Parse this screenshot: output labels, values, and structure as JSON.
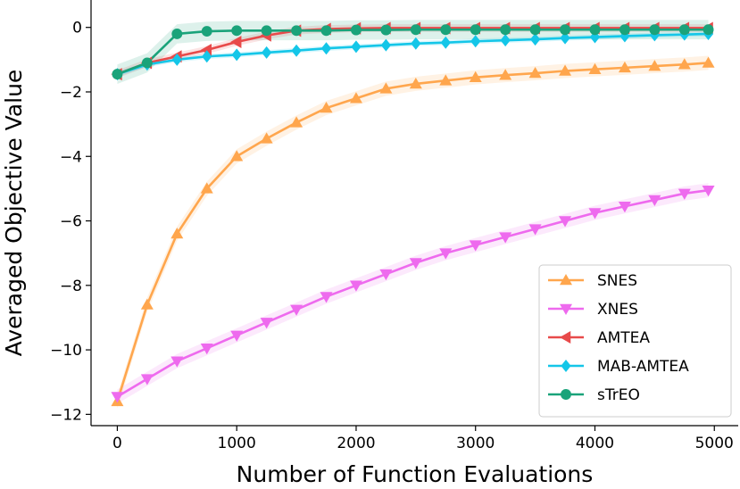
{
  "chart_data": {
    "type": "line",
    "xlabel": "Number of Function Evaluations",
    "ylabel": "Averaged Objective Value",
    "xlim": [
      -220,
      5200
    ],
    "ylim": [
      -12.35,
      0.85
    ],
    "xticks": [
      0,
      1000,
      2000,
      3000,
      4000,
      5000
    ],
    "yticks": [
      0,
      -2,
      -4,
      -6,
      -8,
      -10,
      -12
    ],
    "xtick_labels": [
      "0",
      "1000",
      "2000",
      "3000",
      "4000",
      "5000"
    ],
    "ytick_labels": [
      "0",
      "−2",
      "−4",
      "−6",
      "−8",
      "−10",
      "−12"
    ],
    "grid": false,
    "legend_position": "lower-right",
    "x": [
      0,
      250,
      500,
      750,
      1000,
      1250,
      1500,
      1750,
      2000,
      2250,
      2500,
      2750,
      3000,
      3250,
      3500,
      3750,
      4000,
      4250,
      4500,
      4750,
      4950
    ],
    "series": [
      {
        "name": "SNES",
        "color": "#ffa64d",
        "marker": "triangle-up",
        "values": [
          -11.6,
          -8.6,
          -6.4,
          -5.0,
          -4.0,
          -3.45,
          -2.95,
          -2.5,
          -2.2,
          -1.9,
          -1.75,
          -1.65,
          -1.55,
          -1.48,
          -1.42,
          -1.35,
          -1.3,
          -1.25,
          -1.2,
          -1.15,
          -1.1
        ],
        "band": 0.22
      },
      {
        "name": "XNES",
        "color": "#ee6aee",
        "marker": "triangle-down",
        "values": [
          -11.45,
          -10.9,
          -10.35,
          -9.95,
          -9.55,
          -9.15,
          -8.75,
          -8.35,
          -8.0,
          -7.65,
          -7.3,
          -7.0,
          -6.75,
          -6.5,
          -6.25,
          -6.0,
          -5.75,
          -5.55,
          -5.35,
          -5.15,
          -5.05
        ],
        "band": 0.22
      },
      {
        "name": "AMTEA",
        "color": "#e84a4a",
        "marker": "triangle-left",
        "values": [
          -1.45,
          -1.1,
          -0.9,
          -0.7,
          -0.45,
          -0.25,
          -0.1,
          -0.05,
          -0.03,
          -0.02,
          -0.02,
          -0.02,
          -0.02,
          -0.02,
          -0.02,
          -0.02,
          -0.02,
          -0.02,
          -0.02,
          -0.02,
          -0.02
        ],
        "band": 0.12
      },
      {
        "name": "MAB-AMTEA",
        "color": "#14c6e8",
        "marker": "diamond",
        "values": [
          -1.45,
          -1.15,
          -1.0,
          -0.9,
          -0.85,
          -0.78,
          -0.72,
          -0.65,
          -0.6,
          -0.55,
          -0.5,
          -0.47,
          -0.43,
          -0.4,
          -0.37,
          -0.33,
          -0.3,
          -0.27,
          -0.24,
          -0.22,
          -0.2
        ],
        "band": 0.08
      },
      {
        "name": "sTrEO",
        "color": "#1aa37a",
        "marker": "circle",
        "values": [
          -1.45,
          -1.1,
          -0.2,
          -0.12,
          -0.1,
          -0.1,
          -0.1,
          -0.1,
          -0.08,
          -0.08,
          -0.07,
          -0.07,
          -0.07,
          -0.07,
          -0.07,
          -0.07,
          -0.07,
          -0.07,
          -0.07,
          -0.07,
          -0.07
        ],
        "band": 0.3
      }
    ]
  }
}
